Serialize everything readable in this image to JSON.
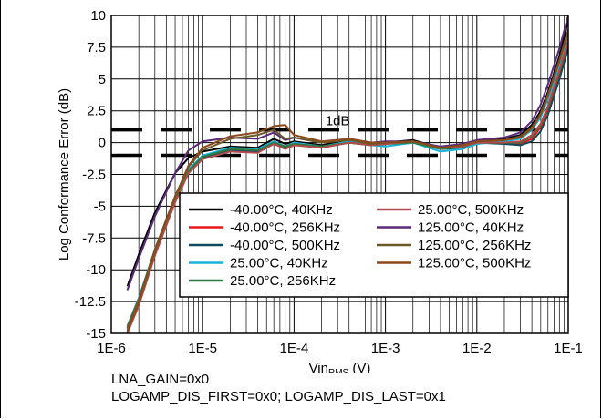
{
  "chart_data": {
    "type": "line",
    "title": "",
    "xlabel": {
      "main": "Vin",
      "sub": "RMS",
      "unit": " (V)"
    },
    "ylabel": "Log Conformance Error (dB)",
    "x_scale": "log",
    "xlim": [
      1e-06,
      0.1
    ],
    "ylim": [
      -15,
      10
    ],
    "x_ticks": [
      {
        "value": 1e-06,
        "label": "1E-6"
      },
      {
        "value": 1e-05,
        "label": "1E-5"
      },
      {
        "value": 0.0001,
        "label": "1E-4"
      },
      {
        "value": 0.001,
        "label": "1E-3"
      },
      {
        "value": 0.01,
        "label": "1E-2"
      },
      {
        "value": 0.1,
        "label": "1E-1"
      }
    ],
    "y_ticks": [
      {
        "value": 10,
        "label": "10"
      },
      {
        "value": 7.5,
        "label": "7.5"
      },
      {
        "value": 5,
        "label": "5"
      },
      {
        "value": 2.5,
        "label": "2.5"
      },
      {
        "value": 0,
        "label": "0"
      },
      {
        "value": -2.5,
        "label": "-2.5"
      },
      {
        "value": -5,
        "label": "-5"
      },
      {
        "value": -7.5,
        "label": "-7.5"
      },
      {
        "value": -10,
        "label": "-10"
      },
      {
        "value": -12.5,
        "label": "-12.5"
      },
      {
        "value": -15,
        "label": "-15"
      }
    ],
    "grid": true,
    "limit_lines": {
      "values": [
        1,
        -1
      ],
      "label": "1dB",
      "style": "dashed",
      "color": "#000000"
    },
    "legend_position": "lower-right",
    "series": [
      {
        "name": "-40.00°C, 40KHz",
        "color": "#000000",
        "x": [
          1.5e-06,
          2e-06,
          3e-06,
          5e-06,
          7e-06,
          1e-05,
          2e-05,
          4e-05,
          6e-05,
          8e-05,
          0.0001,
          0.0002,
          0.0004,
          0.0007,
          0.001,
          0.002,
          0.004,
          0.007,
          0.01,
          0.02,
          0.03,
          0.04,
          0.05,
          0.06,
          0.08,
          0.1
        ],
        "y": [
          -11.3,
          -8.8,
          -5.5,
          -2.4,
          -1.2,
          -0.7,
          -0.3,
          -0.4,
          0.3,
          -0.1,
          0.1,
          -0.2,
          0.2,
          -0.1,
          0.0,
          0.2,
          -0.4,
          -0.2,
          0.1,
          0.3,
          0.6,
          1.4,
          2.5,
          4.0,
          6.8,
          9.6
        ]
      },
      {
        "name": "-40.00°C, 256KHz",
        "color": "#e8161a",
        "x": [
          1.5e-06,
          2e-06,
          3e-06,
          5e-06,
          7e-06,
          1e-05,
          2e-05,
          4e-05,
          6e-05,
          8e-05,
          0.0001,
          0.0002,
          0.0004,
          0.0007,
          0.001,
          0.002,
          0.004,
          0.007,
          0.01,
          0.02,
          0.03,
          0.04,
          0.05,
          0.06,
          0.08,
          0.1
        ],
        "y": [
          -14.6,
          -12.5,
          -8.6,
          -4.4,
          -2.2,
          -1.1,
          -0.5,
          -0.6,
          0.1,
          -0.3,
          0.0,
          -0.3,
          0.1,
          -0.2,
          -0.1,
          0.1,
          -0.5,
          -0.3,
          0.0,
          0.0,
          -0.1,
          0.3,
          1.2,
          2.6,
          5.4,
          7.8
        ]
      },
      {
        "name": "-40.00°C, 500KHz",
        "color": "#0d4c5a",
        "x": [
          1.5e-06,
          2e-06,
          3e-06,
          5e-06,
          7e-06,
          1e-05,
          2e-05,
          4e-05,
          6e-05,
          8e-05,
          0.0001,
          0.0002,
          0.0004,
          0.0007,
          0.001,
          0.002,
          0.004,
          0.007,
          0.01,
          0.02,
          0.03,
          0.04,
          0.05,
          0.06,
          0.08,
          0.1
        ],
        "y": [
          -14.9,
          -12.7,
          -8.8,
          -4.6,
          -2.3,
          -1.2,
          -0.6,
          -0.7,
          0.0,
          -0.4,
          -0.1,
          -0.4,
          0.0,
          -0.2,
          -0.1,
          0.1,
          -0.5,
          -0.4,
          0.0,
          -0.1,
          -0.2,
          0.1,
          0.9,
          2.2,
          5.0,
          7.4
        ]
      },
      {
        "name": "25.00°C, 40KHz",
        "color": "#1ab4d8",
        "x": [
          1.5e-06,
          2e-06,
          3e-06,
          5e-06,
          7e-06,
          1e-05,
          2e-05,
          4e-05,
          6e-05,
          8e-05,
          0.0001,
          0.0002,
          0.0004,
          0.0007,
          0.001,
          0.002,
          0.004,
          0.007,
          0.01,
          0.02,
          0.03,
          0.04,
          0.05,
          0.06,
          0.08,
          0.1
        ],
        "y": [
          -14.4,
          -12.2,
          -8.4,
          -4.3,
          -2.1,
          -1.0,
          -0.4,
          -0.5,
          0.1,
          -0.3,
          0.0,
          -0.3,
          0.1,
          -0.2,
          -0.3,
          0.0,
          -0.7,
          -0.5,
          -0.1,
          0.1,
          0.3,
          1.0,
          2.0,
          3.4,
          6.0,
          8.4
        ]
      },
      {
        "name": "25.00°C, 256KHz",
        "color": "#2e7a44",
        "x": [
          1.5e-06,
          2e-06,
          3e-06,
          5e-06,
          7e-06,
          1e-05,
          2e-05,
          4e-05,
          6e-05,
          8e-05,
          0.0001,
          0.0002,
          0.0004,
          0.0007,
          0.001,
          0.002,
          0.004,
          0.007,
          0.01,
          0.02,
          0.03,
          0.04,
          0.05,
          0.06,
          0.08,
          0.1
        ],
        "y": [
          -14.7,
          -12.5,
          -8.6,
          -4.5,
          -2.2,
          -1.1,
          -0.5,
          -0.6,
          0.0,
          -0.3,
          -0.1,
          -0.3,
          0.0,
          -0.2,
          -0.1,
          0.0,
          -0.5,
          -0.3,
          0.0,
          0.0,
          0.0,
          0.5,
          1.4,
          2.8,
          5.6,
          8.0
        ]
      },
      {
        "name": "25.00°C, 500KHz",
        "color": "#b14a4a",
        "x": [
          1.5e-06,
          2e-06,
          3e-06,
          5e-06,
          7e-06,
          1e-05,
          2e-05,
          4e-05,
          6e-05,
          8e-05,
          0.0001,
          0.0002,
          0.0004,
          0.0007,
          0.001,
          0.002,
          0.004,
          0.007,
          0.01,
          0.02,
          0.03,
          0.04,
          0.05,
          0.06,
          0.08,
          0.1
        ],
        "y": [
          -15.0,
          -12.8,
          -8.9,
          -4.7,
          -2.4,
          -1.3,
          -0.7,
          -0.8,
          -0.1,
          -0.5,
          -0.2,
          -0.4,
          0.0,
          -0.2,
          -0.1,
          0.1,
          -0.4,
          -0.3,
          0.0,
          0.0,
          0.1,
          0.6,
          1.5,
          2.9,
          5.7,
          8.1
        ]
      },
      {
        "name": "125.00°C, 40KHz",
        "color": "#5a2a7a",
        "x": [
          1.5e-06,
          2e-06,
          3e-06,
          5e-06,
          7e-06,
          1e-05,
          2e-05,
          4e-05,
          6e-05,
          8e-05,
          0.0001,
          0.0002,
          0.0004,
          0.0007,
          0.001,
          0.002,
          0.004,
          0.007,
          0.01,
          0.02,
          0.03,
          0.04,
          0.05,
          0.06,
          0.08,
          0.1
        ],
        "y": [
          -11.6,
          -9.1,
          -5.8,
          -2.4,
          -0.6,
          0.1,
          0.4,
          0.3,
          0.8,
          0.2,
          0.4,
          0.0,
          0.3,
          0.0,
          0.1,
          0.1,
          -0.3,
          -0.1,
          0.2,
          0.4,
          0.8,
          1.7,
          3.0,
          4.6,
          7.4,
          10.0
        ]
      },
      {
        "name": "125.00°C, 256KHz",
        "color": "#6b5a2a",
        "x": [
          1.5e-06,
          2e-06,
          3e-06,
          5e-06,
          7e-06,
          1e-05,
          2e-05,
          4e-05,
          6e-05,
          8e-05,
          0.0001,
          0.0002,
          0.0004,
          0.0007,
          0.001,
          0.002,
          0.004,
          0.007,
          0.01,
          0.02,
          0.03,
          0.04,
          0.05,
          0.06,
          0.08,
          0.1
        ],
        "y": [
          -14.5,
          -12.3,
          -8.4,
          -4.2,
          -1.9,
          -0.6,
          0.3,
          0.6,
          1.0,
          0.3,
          0.4,
          0.0,
          0.2,
          -0.1,
          0.0,
          0.1,
          -0.4,
          -0.2,
          0.1,
          0.2,
          0.5,
          1.2,
          2.3,
          3.8,
          6.5,
          8.9
        ]
      },
      {
        "name": "125.00°C, 500KHz",
        "color": "#8a4a1c",
        "x": [
          1.5e-06,
          2e-06,
          3e-06,
          5e-06,
          7e-06,
          1e-05,
          2e-05,
          4e-05,
          6e-05,
          8e-05,
          0.0001,
          0.0002,
          0.0004,
          0.0007,
          0.001,
          0.002,
          0.004,
          0.007,
          0.01,
          0.02,
          0.03,
          0.04,
          0.05,
          0.06,
          0.08,
          0.1
        ],
        "y": [
          -14.8,
          -12.6,
          -8.6,
          -4.3,
          -1.8,
          -0.4,
          0.5,
          0.8,
          1.3,
          1.4,
          0.6,
          0.1,
          0.3,
          0.0,
          0.0,
          0.1,
          -0.4,
          -0.2,
          0.1,
          0.2,
          0.4,
          1.1,
          2.2,
          3.7,
          6.4,
          8.7
        ]
      }
    ]
  },
  "notes": {
    "line1": "LNA_GAIN=0x0",
    "line2": "LOGAMP_DIS_FIRST=0x0; LOGAMP_DIS_LAST=0x1"
  }
}
